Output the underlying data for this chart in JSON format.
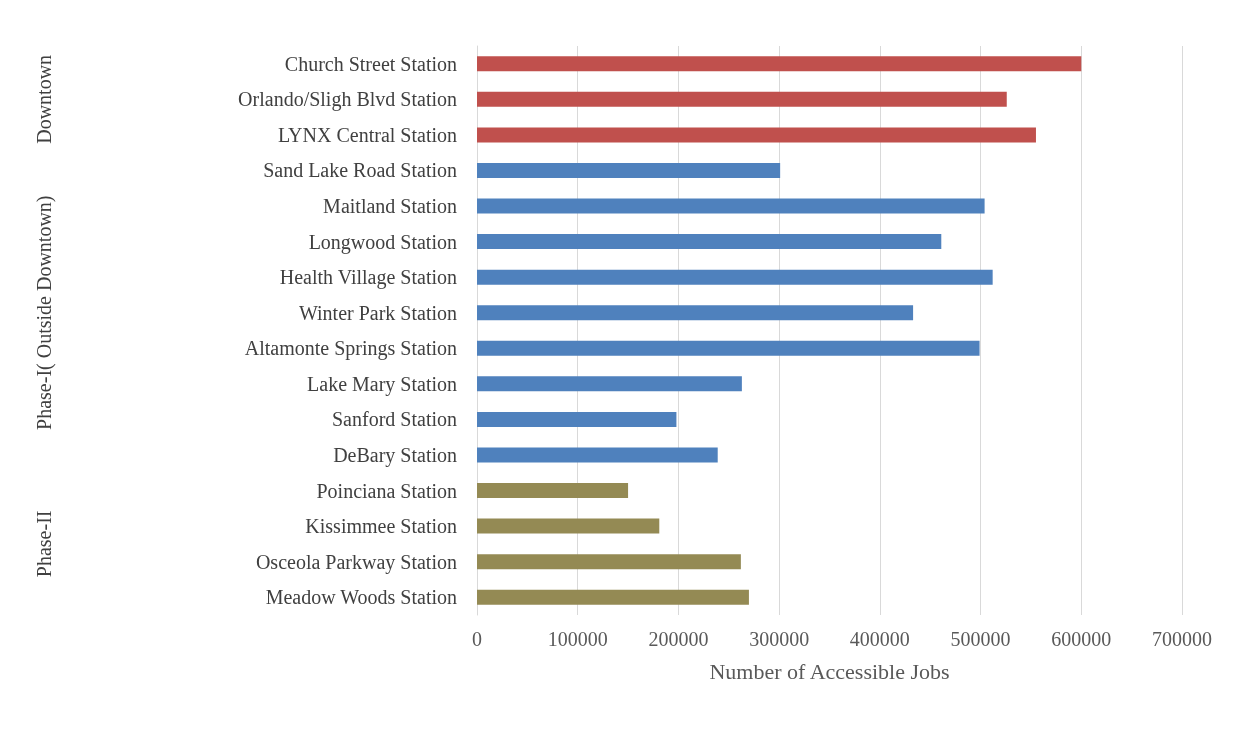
{
  "chart_data": {
    "type": "bar",
    "orientation": "horizontal",
    "xlabel": "Number of Accessible Jobs",
    "categories": [
      "Church Street Station",
      "Orlando/Sligh Blvd Station",
      "LYNX Central Station",
      "Sand Lake Road Station",
      "Maitland Station",
      "Longwood Station",
      "Health Village Station",
      "Winter Park Station",
      "Altamonte Springs Station",
      "Lake Mary Station",
      "Sanford Station",
      "DeBary Station",
      "Poinciana Station",
      "Kissimmee Station",
      "Osceola Parkway Station",
      "Meadow Woods Station"
    ],
    "values": [
      600000,
      526000,
      555000,
      301000,
      504000,
      461000,
      512000,
      433000,
      499000,
      263000,
      198000,
      239000,
      150000,
      181000,
      262000,
      270000
    ],
    "colors": [
      "#c0504d",
      "#c0504d",
      "#c0504d",
      "#4f81bd",
      "#4f81bd",
      "#4f81bd",
      "#4f81bd",
      "#4f81bd",
      "#4f81bd",
      "#4f81bd",
      "#4f81bd",
      "#4f81bd",
      "#948a54",
      "#948a54",
      "#948a54",
      "#948a54"
    ],
    "annotations": [
      "Downtown",
      "Phase-I( Outside Downtown)",
      "Phase-II"
    ],
    "xlim": [
      0,
      700000
    ],
    "xticks": [
      0,
      100000,
      200000,
      300000,
      400000,
      500000,
      600000,
      700000
    ],
    "grid": "x"
  }
}
